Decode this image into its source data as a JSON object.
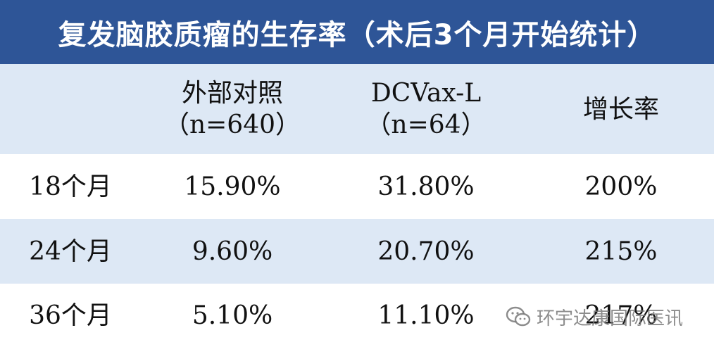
{
  "title": "复发脑胶质瘤的生存率（术后3个月开始统计）",
  "table": {
    "headers": [
      {
        "line1": "",
        "line2": ""
      },
      {
        "line1": "外部对照",
        "line2": "（n=640）"
      },
      {
        "line1": "DCVax-L",
        "line2": "（n=64）"
      },
      {
        "line1": "增长率",
        "line2": ""
      }
    ],
    "rows": [
      {
        "period": "18个月",
        "control": "15.90%",
        "dcvax": "31.80%",
        "growth": "200%"
      },
      {
        "period": "24个月",
        "control": "9.60%",
        "dcvax": "20.70%",
        "growth": "215%"
      },
      {
        "period": "36个月",
        "control": "5.10%",
        "dcvax": "11.10%",
        "growth": "217%"
      }
    ]
  },
  "watermark": {
    "text": "环宇达康国际医讯",
    "icon": "wechat-icon",
    "color": "#787878"
  },
  "colors": {
    "title_bg": "#2e5597",
    "row_light": "#dde8f5",
    "row_white": "#ffffff"
  }
}
